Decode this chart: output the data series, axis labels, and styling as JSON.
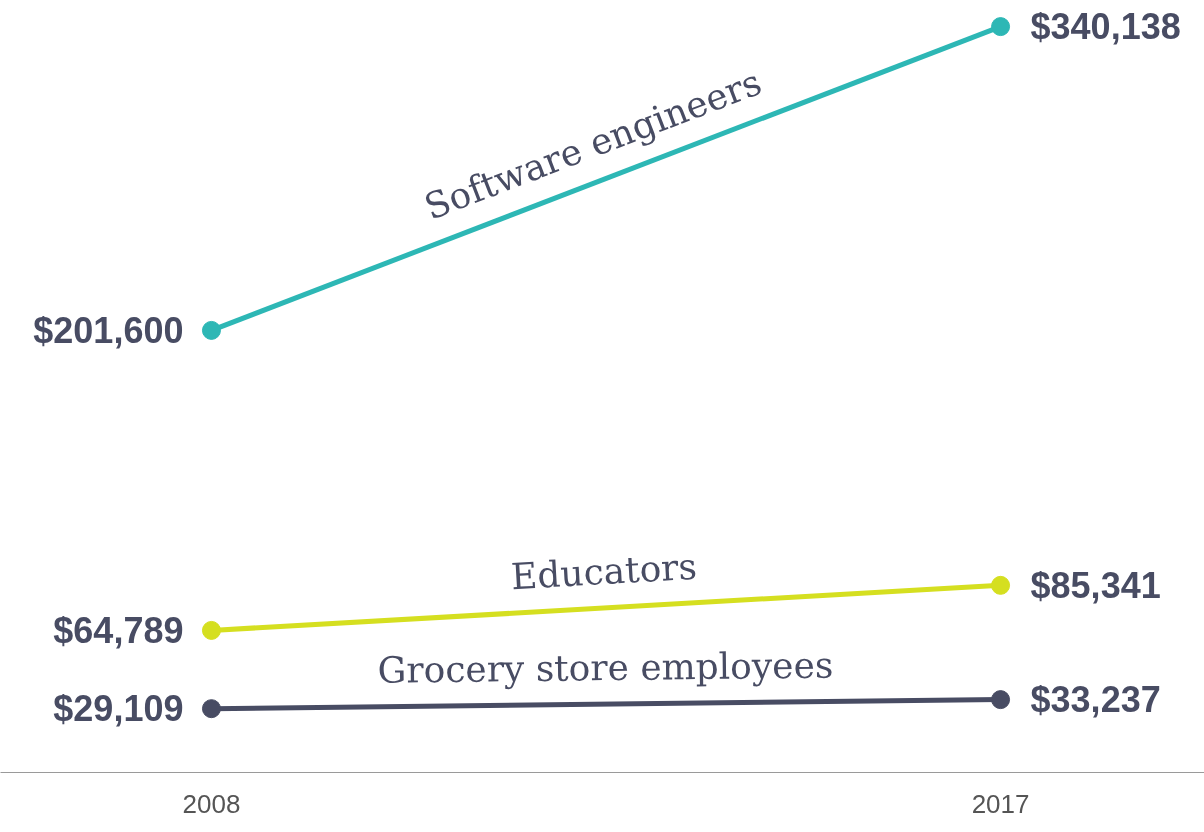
{
  "chart_data": {
    "type": "line",
    "x": [
      2008,
      2017
    ],
    "xlim": [
      2005.594,
      2019.326
    ],
    "xticks": [
      2008,
      2017
    ],
    "grid": false,
    "legend": false,
    "marker": "circle",
    "line_style": "solid",
    "series": [
      {
        "name": "Software engineers",
        "color": "#2db7b5",
        "values": [
          201600,
          340138
        ],
        "value_labels": [
          "$201,600",
          "$340,138"
        ]
      },
      {
        "name": "Educators",
        "color": "#d5df20",
        "values": [
          64789,
          85341
        ],
        "value_labels": [
          "$64,789",
          "$85,341"
        ]
      },
      {
        "name": "Grocery store employees",
        "color": "#484c63",
        "values": [
          29109,
          33237
        ],
        "value_labels": [
          "$29,109",
          "$33,237"
        ]
      }
    ]
  }
}
